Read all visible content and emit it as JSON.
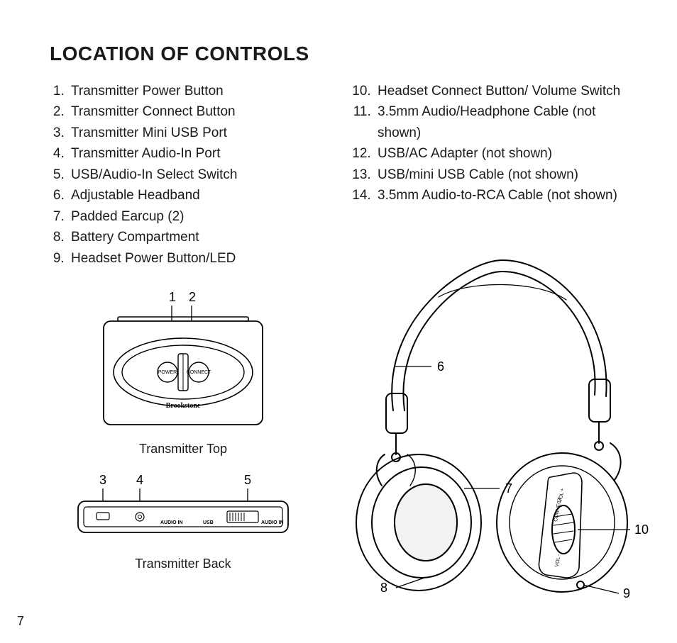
{
  "title": "LOCATION OF CONTROLS",
  "page_number": "7",
  "left_list_start": 1,
  "right_list_start": 10,
  "controls_left": [
    "Transmitter Power Button",
    "Transmitter Connect Button",
    "Transmitter Mini USB Port",
    "Transmitter Audio-In Port",
    "USB/Audio-In Select Switch",
    "Adjustable Headband",
    "Padded Earcup (2)",
    "Battery Compartment",
    "Headset Power Button/LED"
  ],
  "controls_right": [
    "Headset Connect Button/ Volume Switch",
    "3.5mm Audio/Headphone Cable (not shown)",
    "USB/AC Adapter (not shown)",
    "USB/mini USB Cable (not shown)",
    "3.5mm Audio-to-RCA Cable (not shown)"
  ],
  "captions": {
    "transmitter_top": "Transmitter Top",
    "transmitter_back": "Transmitter Back"
  },
  "labels": {
    "power": "POWER",
    "connect": "CONNECT",
    "brand": "Brookstone",
    "audio_in": "AUDIO IN",
    "usb": "USB",
    "vol_plus": "VOL +",
    "vol_minus": "VOL -",
    "hp_connect": "CONNECT"
  },
  "callouts": {
    "top": {
      "c1": "1",
      "c2": "2"
    },
    "back": {
      "c3": "3",
      "c4": "4",
      "c5": "5"
    },
    "hp": {
      "c6": "6",
      "c7": "7",
      "c8": "8",
      "c9": "9",
      "c10": "10"
    }
  },
  "style": {
    "text_color": "#1a1a1a",
    "background": "#ffffff",
    "stroke": "#000000",
    "stroke_width": 1.6,
    "title_fontsize": 28,
    "body_fontsize": 19,
    "caption_fontsize": 18,
    "callout_fontsize": 18,
    "font_family": "Helvetica Neue, Helvetica, Arial, sans-serif"
  }
}
